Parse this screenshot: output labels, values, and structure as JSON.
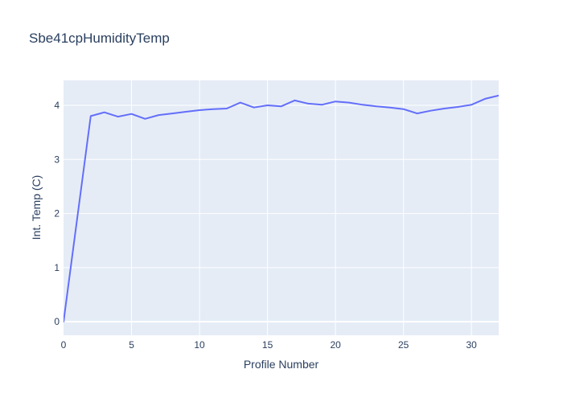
{
  "chart_data": {
    "type": "line",
    "title": "Sbe41cpHumidityTemp",
    "xlabel": "Profile Number",
    "ylabel": "Int. Temp (C)",
    "x": [
      0,
      1,
      2,
      3,
      4,
      5,
      6,
      7,
      8,
      9,
      10,
      11,
      12,
      13,
      14,
      15,
      16,
      17,
      18,
      19,
      20,
      21,
      22,
      23,
      24,
      25,
      26,
      27,
      28,
      29,
      30,
      31,
      32
    ],
    "y": [
      0.0,
      1.9,
      3.8,
      3.87,
      3.79,
      3.84,
      3.75,
      3.82,
      3.85,
      3.88,
      3.91,
      3.93,
      3.94,
      4.05,
      3.96,
      4.0,
      3.98,
      4.09,
      4.03,
      4.01,
      4.07,
      4.05,
      4.01,
      3.98,
      3.96,
      3.93,
      3.85,
      3.9,
      3.94,
      3.97,
      4.01,
      4.12,
      4.18
    ],
    "x_ticks": [
      0,
      5,
      10,
      15,
      20,
      25,
      30
    ],
    "y_ticks": [
      0,
      1,
      2,
      3,
      4
    ],
    "xlim": [
      0,
      32
    ],
    "ylim": [
      -0.25,
      4.46
    ],
    "grid": true,
    "legend": "none",
    "colors": {
      "line": "#636efa",
      "plot_background": "#e5ecf6",
      "grid": "#ffffff",
      "text": "#2a3f5f",
      "paper": "#ffffff"
    },
    "line_width": 2
  }
}
